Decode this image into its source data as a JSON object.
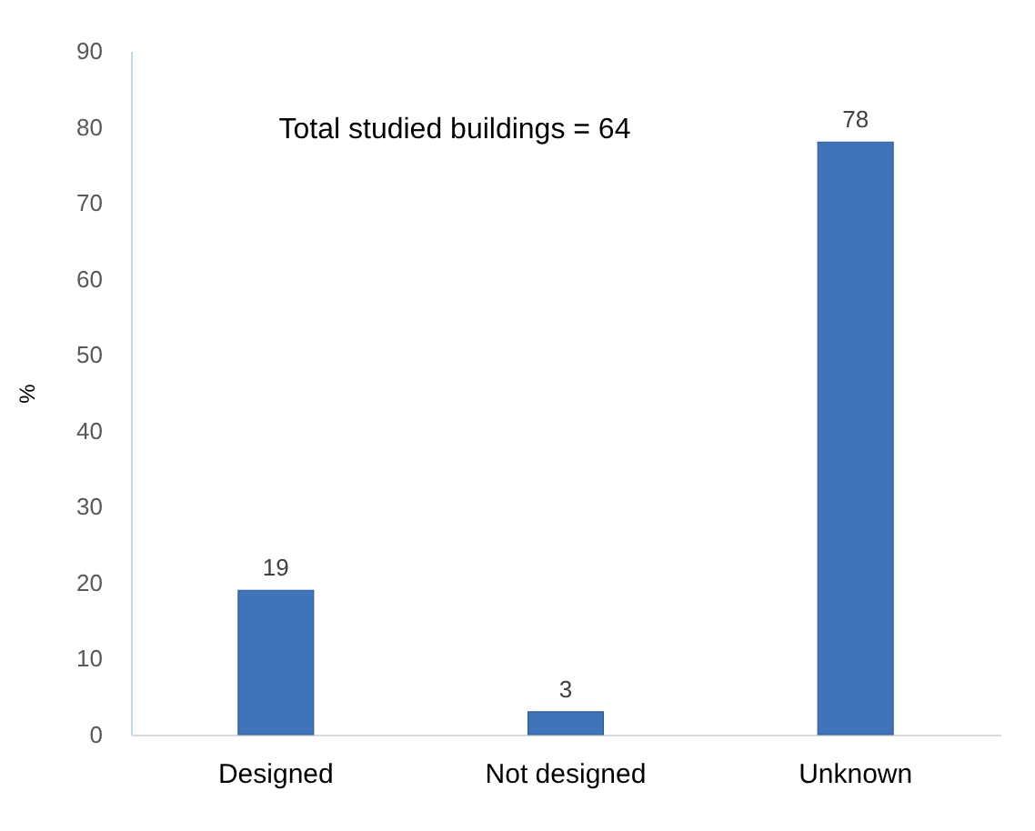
{
  "chart_data": {
    "type": "bar",
    "categories": [
      "Designed",
      "Not designed",
      "Unknown"
    ],
    "values": [
      19,
      3,
      78
    ],
    "color": "#3f74bb",
    "ylabel": "%",
    "ylim": [
      0,
      90
    ],
    "yticks": [
      0,
      10,
      20,
      30,
      40,
      50,
      60,
      70,
      80,
      90
    ],
    "data_labels": true,
    "annotations": [
      "Total studied buildings = 64"
    ]
  }
}
